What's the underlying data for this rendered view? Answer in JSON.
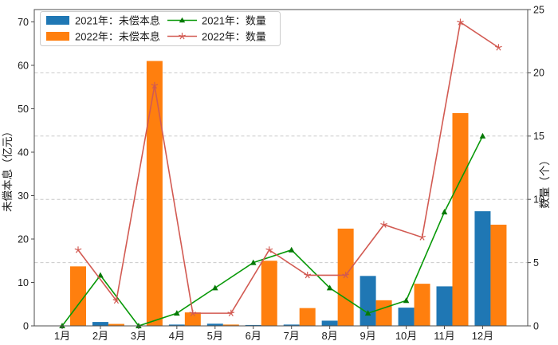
{
  "figure": {
    "background": "#ffffff",
    "axis_color": "#4d4d4d",
    "grid_color": "#c9c9c9"
  },
  "legend": {
    "position": "upper-left",
    "items": [
      {
        "label": "2021年：未偿本息",
        "type": "bar",
        "color": "#1f77b4"
      },
      {
        "label": "2022年：未偿本息",
        "type": "bar",
        "color": "#ff7f0e"
      },
      {
        "label": "2021年：数量",
        "type": "line",
        "color": "#089908",
        "marker": "triangle"
      },
      {
        "label": "2022年：数量",
        "type": "line",
        "color": "#d25a52",
        "marker": "star"
      }
    ]
  },
  "chart_data": {
    "type": "bar",
    "subtype": "grouped-bars-with-dual-axis-lines",
    "categories": [
      "1月",
      "2月",
      "3月",
      "4月",
      "5月",
      "6月",
      "7月",
      "8月",
      "9月",
      "10月",
      "11月",
      "12月"
    ],
    "series": [
      {
        "name": "2021年：未偿本息",
        "type": "bar",
        "axis": "left",
        "color": "#1f77b4",
        "values": [
          0,
          0.9,
          0,
          0.3,
          0.5,
          0.2,
          0.3,
          1.2,
          11.5,
          4.2,
          9.1,
          26.4
        ]
      },
      {
        "name": "2022年：未偿本息",
        "type": "bar",
        "axis": "left",
        "color": "#ff7f0e",
        "values": [
          13.7,
          0.45,
          61,
          3.1,
          0.3,
          15,
          4.1,
          22.4,
          5.9,
          9.7,
          49,
          23.3
        ]
      },
      {
        "name": "2021年：数量",
        "type": "line",
        "axis": "right",
        "color": "#089908",
        "marker": "triangle",
        "values": [
          0,
          4,
          0,
          1,
          3,
          5,
          6,
          3,
          1,
          2,
          9,
          15
        ]
      },
      {
        "name": "2022年：数量",
        "type": "line",
        "axis": "right",
        "color": "#d25a52",
        "marker": "star",
        "values": [
          6,
          2,
          19,
          1,
          1,
          6,
          4,
          4,
          8,
          7,
          24,
          22
        ]
      }
    ],
    "ylabel_left": "未偿本息（亿元）",
    "ylabel_right": "数量（个）",
    "yticks_left": [
      0,
      10,
      20,
      30,
      40,
      50,
      60,
      70
    ],
    "yticks_right": [
      0,
      5,
      10,
      15,
      20,
      25
    ],
    "ylim_left": [
      0,
      72.8
    ],
    "ylim_right": [
      0,
      25
    ],
    "grid": {
      "orientation": "horizontal",
      "on_right_axis_ticks": [
        5,
        10,
        15,
        20
      ],
      "style": "dashed"
    },
    "legend_position": "upper left"
  }
}
